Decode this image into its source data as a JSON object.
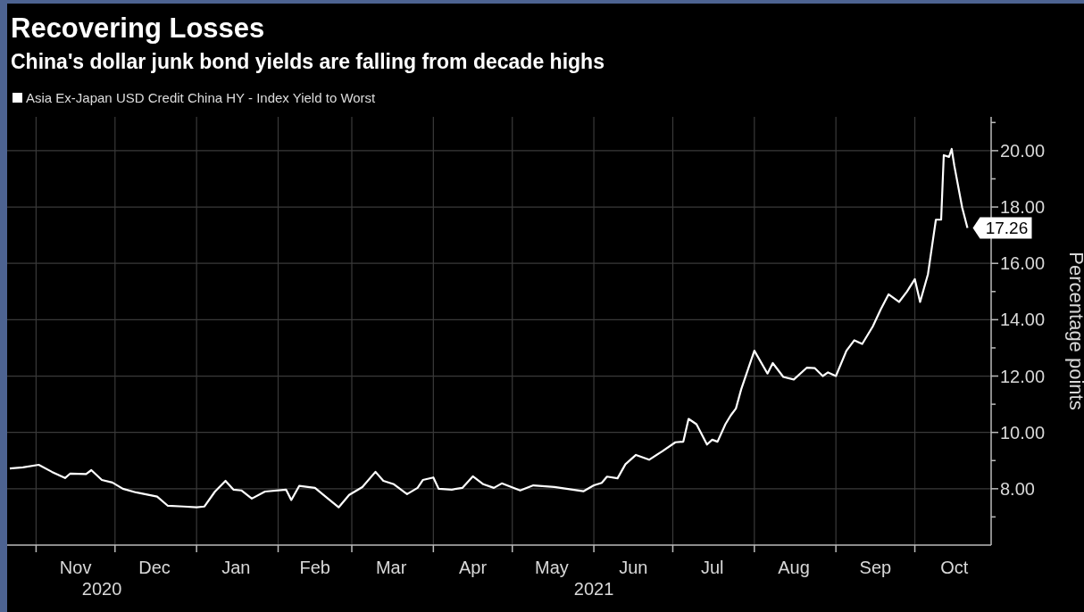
{
  "chart_data": {
    "type": "line",
    "title": "Recovering Losses",
    "subtitle": "China's dollar junk bond yields are falling from decade highs",
    "ylabel": "Percentage points",
    "legend": "top left",
    "grid": true,
    "x": [
      "2020-10-22",
      "2020-10-27",
      "2020-11-02",
      "2020-11-07",
      "2020-11-12",
      "2020-11-14",
      "2020-11-20",
      "2020-11-22",
      "2020-11-26",
      "2020-11-30",
      "2020-12-04",
      "2020-12-09",
      "2020-12-17",
      "2020-12-21",
      "2020-12-27",
      "2021-01-01",
      "2021-01-04",
      "2021-01-08",
      "2021-01-12",
      "2021-01-15",
      "2021-01-18",
      "2021-01-22",
      "2021-01-27",
      "2021-02-04",
      "2021-02-06",
      "2021-02-09",
      "2021-02-15",
      "2021-02-19",
      "2021-02-24",
      "2021-02-28",
      "2021-03-05",
      "2021-03-10",
      "2021-03-13",
      "2021-03-17",
      "2021-03-22",
      "2021-03-26",
      "2021-03-28",
      "2021-04-01",
      "2021-04-03",
      "2021-04-08",
      "2021-04-12",
      "2021-04-16",
      "2021-04-20",
      "2021-04-24",
      "2021-04-27",
      "2021-05-04",
      "2021-05-09",
      "2021-05-17",
      "2021-05-28",
      "2021-06-01",
      "2021-06-04",
      "2021-06-06",
      "2021-06-10",
      "2021-06-13",
      "2021-06-17",
      "2021-06-22",
      "2021-06-27",
      "2021-07-02",
      "2021-07-05",
      "2021-07-07",
      "2021-07-10",
      "2021-07-14",
      "2021-07-16",
      "2021-07-18",
      "2021-07-21",
      "2021-07-23",
      "2021-07-25",
      "2021-07-27",
      "2021-08-01",
      "2021-08-06",
      "2021-08-08",
      "2021-08-12",
      "2021-08-16",
      "2021-08-21",
      "2021-08-24",
      "2021-08-27",
      "2021-08-29",
      "2021-09-01",
      "2021-09-05",
      "2021-09-08",
      "2021-09-11",
      "2021-09-15",
      "2021-09-18",
      "2021-09-21",
      "2021-09-25",
      "2021-09-28",
      "2021-10-01",
      "2021-10-03",
      "2021-10-06",
      "2021-10-09",
      "2021-10-11",
      "2021-10-12",
      "2021-10-14",
      "2021-10-15",
      "2021-10-16",
      "2021-10-19",
      "2021-10-21"
    ],
    "series": [
      {
        "name": "Asia Ex-Japan USD Credit China HY - Index Yield to Worst",
        "color": "#ffffff",
        "values": [
          8.72,
          8.76,
          8.85,
          8.6,
          8.38,
          8.54,
          8.52,
          8.66,
          8.31,
          8.22,
          8.0,
          7.87,
          7.72,
          7.4,
          7.37,
          7.34,
          7.37,
          7.9,
          8.28,
          7.97,
          7.94,
          7.65,
          7.9,
          7.97,
          7.6,
          8.1,
          8.03,
          7.72,
          7.34,
          7.78,
          8.06,
          8.6,
          8.28,
          8.16,
          7.81,
          8.03,
          8.31,
          8.4,
          8.0,
          7.97,
          8.03,
          8.44,
          8.16,
          8.03,
          8.19,
          7.94,
          8.12,
          8.06,
          7.91,
          8.12,
          8.21,
          8.43,
          8.37,
          8.87,
          9.2,
          9.03,
          9.33,
          9.65,
          9.67,
          10.48,
          10.29,
          9.57,
          9.74,
          9.67,
          10.29,
          10.6,
          10.85,
          11.53,
          12.9,
          12.09,
          12.46,
          11.97,
          11.88,
          12.3,
          12.28,
          12.0,
          12.13,
          12.0,
          12.9,
          13.27,
          13.14,
          13.76,
          14.36,
          14.9,
          14.63,
          15.0,
          15.44,
          14.63,
          15.62,
          17.55,
          17.55,
          19.84,
          19.78,
          20.06,
          19.47,
          17.98,
          17.26
        ],
        "value_labels": [
          null,
          null,
          null,
          null,
          null,
          null,
          null,
          null,
          null,
          null,
          null,
          null,
          null,
          null,
          null,
          null,
          null,
          null,
          null,
          null,
          null,
          null,
          null,
          null,
          null,
          null,
          null,
          null,
          null,
          null,
          null,
          null,
          null,
          null,
          null,
          null,
          null,
          null,
          null,
          null,
          null,
          null,
          null,
          null,
          null,
          null,
          null,
          null,
          null,
          null,
          null,
          null,
          null,
          null,
          null,
          null,
          null,
          null,
          null,
          null,
          null,
          null,
          null,
          null,
          null,
          null,
          null,
          null,
          null,
          null,
          null,
          null,
          null,
          null,
          null,
          null,
          null,
          null,
          null,
          null,
          null,
          null,
          null,
          null,
          null,
          null,
          null,
          null,
          null,
          null,
          null,
          null,
          null,
          null,
          null,
          null,
          "17.26"
        ]
      }
    ],
    "xlim": [
      "2020-10-21",
      "2021-10-30"
    ],
    "xticks": [
      {
        "value": "2020-11-01",
        "label": null
      },
      {
        "value": "2020-11-16",
        "label": "Nov"
      },
      {
        "value": "2020-12-01",
        "label": null
      },
      {
        "value": "2020-12-16",
        "label": "Dec"
      },
      {
        "value": "2021-01-01",
        "label": null
      },
      {
        "value": "2021-01-16",
        "label": "Jan"
      },
      {
        "value": "2021-02-01",
        "label": null
      },
      {
        "value": "2021-02-15",
        "label": "Feb"
      },
      {
        "value": "2021-03-01",
        "label": null
      },
      {
        "value": "2021-03-16",
        "label": "Mar"
      },
      {
        "value": "2021-04-01",
        "label": null
      },
      {
        "value": "2021-04-16",
        "label": "Apr"
      },
      {
        "value": "2021-05-01",
        "label": null
      },
      {
        "value": "2021-05-16",
        "label": "May"
      },
      {
        "value": "2021-06-01",
        "label": null
      },
      {
        "value": "2021-06-16",
        "label": "Jun"
      },
      {
        "value": "2021-07-01",
        "label": null
      },
      {
        "value": "2021-07-16",
        "label": "Jul"
      },
      {
        "value": "2021-08-01",
        "label": null
      },
      {
        "value": "2021-08-16",
        "label": "Aug"
      },
      {
        "value": "2021-09-01",
        "label": null
      },
      {
        "value": "2021-09-16",
        "label": "Sep"
      },
      {
        "value": "2021-10-01",
        "label": null
      },
      {
        "value": "2021-10-16",
        "label": "Oct"
      }
    ],
    "ylim": [
      6,
      21.2
    ],
    "yticks": [
      {
        "value": 7,
        "label": null
      },
      {
        "value": 8,
        "label": "8.00"
      },
      {
        "value": 9,
        "label": null
      },
      {
        "value": 10,
        "label": "10.00"
      },
      {
        "value": 11,
        "label": null
      },
      {
        "value": 12,
        "label": "12.00"
      },
      {
        "value": 13,
        "label": null
      },
      {
        "value": 14,
        "label": "14.00"
      },
      {
        "value": 15,
        "label": null
      },
      {
        "value": 16,
        "label": "16.00"
      },
      {
        "value": 17,
        "label": null
      },
      {
        "value": 18,
        "label": "18.00"
      },
      {
        "value": 19,
        "label": null
      },
      {
        "value": 20,
        "label": "20.00"
      },
      {
        "value": 21,
        "label": null
      }
    ],
    "annotations": [
      "2020",
      "2021"
    ]
  }
}
